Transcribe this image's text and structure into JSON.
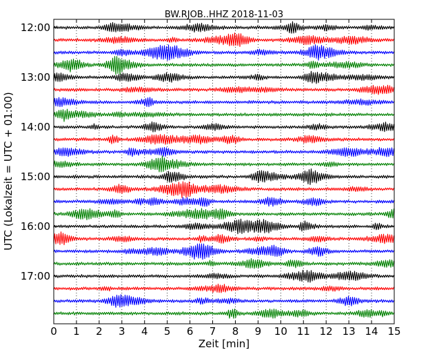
{
  "chart_data": {
    "type": "line",
    "title": "BW.RJOB..HHZ 2018-11-03",
    "xlabel": "Zeit  [min]",
    "ylabel": "UTC (Lokalzeit = UTC + 01:00)",
    "xlim": [
      0,
      15
    ],
    "x_ticks": [
      "0",
      "1",
      "2",
      "3",
      "4",
      "5",
      "6",
      "7",
      "8",
      "9",
      "10",
      "11",
      "12",
      "13",
      "14",
      "15"
    ],
    "y_tick_labels": [
      "12:00",
      "13:00",
      "14:00",
      "15:00",
      "16:00",
      "17:00"
    ],
    "grid": "vertical dotted at each minute",
    "trace_interval_minutes": 15,
    "trace_colors": [
      "#000000",
      "#ff0000",
      "#0000ff",
      "#008000"
    ],
    "traces": [
      {
        "start": "12:00",
        "color": "#000000"
      },
      {
        "start": "12:15",
        "color": "#ff0000"
      },
      {
        "start": "12:30",
        "color": "#0000ff"
      },
      {
        "start": "12:45",
        "color": "#008000"
      },
      {
        "start": "13:00",
        "color": "#000000"
      },
      {
        "start": "13:15",
        "color": "#ff0000"
      },
      {
        "start": "13:30",
        "color": "#0000ff"
      },
      {
        "start": "13:45",
        "color": "#008000"
      },
      {
        "start": "14:00",
        "color": "#000000"
      },
      {
        "start": "14:15",
        "color": "#ff0000"
      },
      {
        "start": "14:30",
        "color": "#0000ff"
      },
      {
        "start": "14:45",
        "color": "#008000"
      },
      {
        "start": "15:00",
        "color": "#000000"
      },
      {
        "start": "15:15",
        "color": "#ff0000"
      },
      {
        "start": "15:30",
        "color": "#0000ff"
      },
      {
        "start": "15:45",
        "color": "#008000"
      },
      {
        "start": "16:00",
        "color": "#000000"
      },
      {
        "start": "16:15",
        "color": "#ff0000"
      },
      {
        "start": "16:30",
        "color": "#0000ff"
      },
      {
        "start": "16:45",
        "color": "#008000"
      },
      {
        "start": "17:00",
        "color": "#000000"
      },
      {
        "start": "17:15",
        "color": "#ff0000"
      },
      {
        "start": "17:30",
        "color": "#0000ff"
      },
      {
        "start": "17:45",
        "color": "#008000"
      }
    ]
  }
}
